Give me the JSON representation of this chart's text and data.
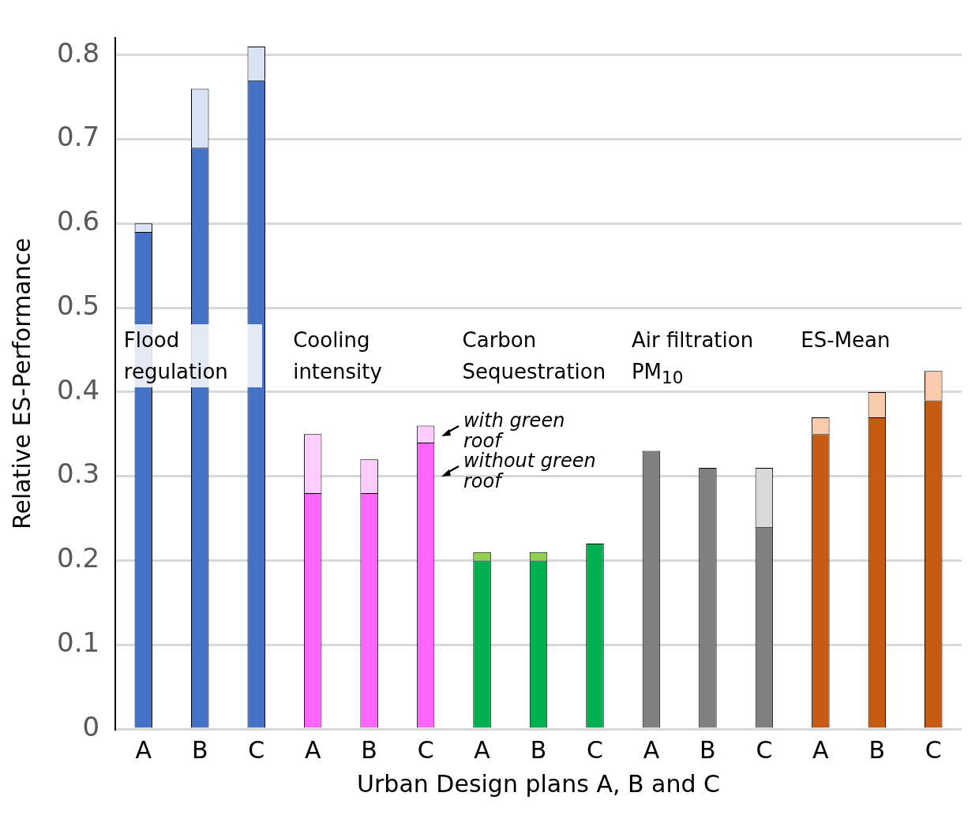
{
  "chart_data": {
    "type": "bar",
    "stacked": true,
    "xlabel": "Urban Design plans A, B and C",
    "ylabel": "Relative ES-Performance",
    "categories": [
      "A",
      "B",
      "C",
      "A",
      "B",
      "C",
      "A",
      "B",
      "C",
      "A",
      "B",
      "C",
      "A",
      "B",
      "C"
    ],
    "series": [
      {
        "name": "without green roof",
        "colors": [
          "#4472c4",
          "#4472c4",
          "#4472c4",
          "#ff66ff",
          "#ff66ff",
          "#ff66ff",
          "#00b050",
          "#00b050",
          "#00b050",
          "#808080",
          "#808080",
          "#808080",
          "#c55a11",
          "#c55a11",
          "#c55a11"
        ],
        "values": [
          0.59,
          0.69,
          0.77,
          0.28,
          0.28,
          0.34,
          0.2,
          0.2,
          0.22,
          0.33,
          0.31,
          0.24,
          0.35,
          0.37,
          0.39
        ]
      },
      {
        "name": "with green roof",
        "colors": [
          "#dae3f3",
          "#dae3f3",
          "#dae3f3",
          "#ffccff",
          "#ffccff",
          "#ffccff",
          "#92d050",
          "#92d050",
          "#92d050",
          "#d9d9d9",
          "#d9d9d9",
          "#d9d9d9",
          "#f8cbad",
          "#f8cbad",
          "#f8cbad"
        ],
        "values": [
          0.01,
          0.07,
          0.04,
          0.07,
          0.04,
          0.02,
          0.01,
          0.01,
          0,
          0,
          0,
          0.07,
          0.02,
          0.03,
          0.035
        ]
      }
    ],
    "annotations": [
      "Flood regulation",
      "Cooling intensity",
      "Carbon Sequestration",
      "Air filtration PM$_{10}$",
      "ES-Mean"
    ],
    "ylim": [
      0,
      0.82
    ],
    "yticks": [
      0,
      0.1,
      0.2,
      0.3,
      0.4,
      0.5,
      0.6,
      0.7,
      0.8
    ],
    "grid": "y",
    "legend": false
  }
}
